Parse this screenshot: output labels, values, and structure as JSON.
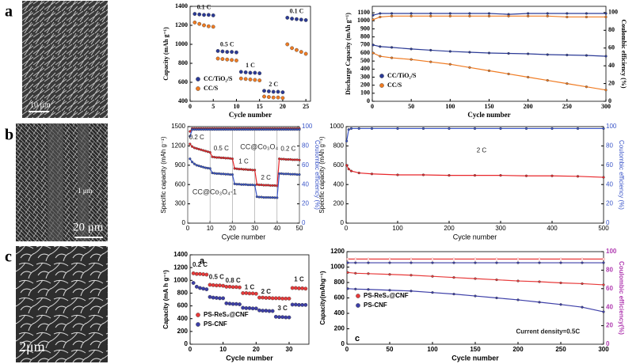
{
  "panels": [
    {
      "label": "a",
      "scale_bars": [
        "10 μm"
      ]
    },
    {
      "label": "b",
      "scale_bars": [
        "1 μm",
        "20 μm"
      ]
    },
    {
      "label": "c",
      "scale_bars": [
        "2μm"
      ]
    }
  ],
  "chart_data": [
    {
      "type": "scatter",
      "xlabel": "Cycle number",
      "ylabel": "Capacity (mAh g⁻¹)",
      "x": [
        1,
        2,
        3,
        4,
        5,
        6,
        7,
        8,
        9,
        10,
        11,
        12,
        13,
        14,
        15,
        16,
        17,
        18,
        19,
        20,
        21,
        22,
        23,
        24,
        25
      ],
      "xlim": [
        0,
        26
      ],
      "xticks": [
        0,
        5,
        10,
        15,
        20,
        25
      ],
      "ylim": [
        400,
        1400
      ],
      "yticks": [
        400,
        600,
        800,
        1000,
        1200,
        1400
      ],
      "series": [
        {
          "name": "CC/TiO₂/S",
          "color": "#2b3a96",
          "values": [
            1320,
            1315,
            1310,
            1310,
            1305,
            930,
            925,
            920,
            920,
            915,
            710,
            705,
            700,
            700,
            695,
            510,
            505,
            500,
            500,
            495,
            1280,
            1270,
            1265,
            1260,
            1255
          ]
        },
        {
          "name": "CC/S",
          "color": "#f07b22",
          "values": [
            1230,
            1215,
            1200,
            1190,
            1185,
            850,
            845,
            840,
            835,
            830,
            640,
            635,
            630,
            625,
            620,
            450,
            445,
            440,
            440,
            435,
            1000,
            960,
            940,
            920,
            900
          ]
        }
      ],
      "annotations": [
        "0.1 C",
        "0.5 C",
        "1 C",
        "2 C",
        "0.1 C"
      ]
    },
    {
      "type": "line",
      "xlabel": "Cycle number",
      "ylabel": "Discharge Capacity (mAh g⁻¹)",
      "y2label": "Coulombic efficiency (%)",
      "y2_color": "#000000",
      "x": [
        1,
        10,
        25,
        50,
        75,
        100,
        125,
        150,
        175,
        200,
        225,
        250,
        275,
        300
      ],
      "xlim": [
        0,
        300
      ],
      "xticks": [
        0,
        50,
        100,
        150,
        200,
        250,
        300
      ],
      "ylim": [
        0,
        1180
      ],
      "yticks": [
        0,
        100,
        200,
        300,
        400,
        500,
        600,
        700,
        800,
        900,
        1000,
        1100
      ],
      "y2lim": [
        0,
        107
      ],
      "y2ticks": [
        0,
        20,
        40,
        60,
        80,
        100
      ],
      "series": [
        {
          "name": "CC/TiO₂/S",
          "color": "#2b3a96",
          "values": [
            700,
            680,
            670,
            650,
            635,
            620,
            610,
            600,
            595,
            590,
            580,
            575,
            570,
            560
          ]
        },
        {
          "name": "CC/S",
          "color": "#f07b22",
          "values": [
            600,
            560,
            540,
            520,
            490,
            460,
            420,
            380,
            340,
            300,
            260,
            220,
            180,
            140
          ]
        },
        {
          "color": "#2b3a96",
          "axis": "y2",
          "values": [
            97,
            99,
            99,
            99,
            99,
            99,
            99,
            99,
            98,
            99,
            99,
            99,
            99,
            99
          ]
        },
        {
          "color": "#f07b22",
          "axis": "y2",
          "values": [
            92,
            95,
            96,
            96,
            96,
            96,
            96,
            96,
            96,
            96,
            96,
            95,
            95,
            95
          ]
        }
      ]
    },
    {
      "type": "line",
      "xlabel": "Cycle number",
      "ylabel": "Specific capacity (mAh g⁻¹)",
      "y2label": "Coulombic efficiency (%)",
      "y2_color": "#3a55c8",
      "grid": "x",
      "x": [
        1,
        2,
        3,
        4,
        5,
        6,
        7,
        8,
        9,
        10,
        11,
        12,
        13,
        14,
        15,
        16,
        17,
        18,
        19,
        20,
        21,
        22,
        23,
        24,
        25,
        26,
        27,
        28,
        29,
        30,
        31,
        32,
        33,
        34,
        35,
        36,
        37,
        38,
        39,
        40,
        41,
        42,
        43,
        44,
        45,
        46,
        47,
        48,
        49,
        50
      ],
      "xlim": [
        0,
        50
      ],
      "xticks": [
        0,
        10,
        20,
        30,
        40,
        50
      ],
      "ylim": [
        0,
        1500
      ],
      "yticks": [
        0,
        300,
        600,
        900,
        1200,
        1500
      ],
      "y2lim": [
        0,
        100
      ],
      "y2ticks": [
        0,
        20,
        40,
        60,
        80,
        100
      ],
      "series": [
        {
          "name": "CC@Co₃O₄",
          "color": "#e8262a",
          "values": [
            1230,
            1190,
            1170,
            1160,
            1150,
            1140,
            1130,
            1120,
            1110,
            1100,
            1030,
            1025,
            1020,
            1020,
            1015,
            1015,
            1010,
            1010,
            1005,
            1000,
            850,
            845,
            840,
            840,
            835,
            835,
            830,
            830,
            825,
            825,
            600,
            595,
            595,
            590,
            590,
            590,
            585,
            585,
            585,
            580,
            1000,
            995,
            995,
            990,
            990,
            990,
            985,
            985,
            985,
            980
          ]
        },
        {
          "name": "CC@Co₃O₄-1",
          "color": "#3a55c8",
          "values": [
            1000,
            950,
            920,
            900,
            890,
            880,
            870,
            860,
            855,
            850,
            780,
            775,
            770,
            770,
            765,
            765,
            760,
            760,
            755,
            755,
            610,
            605,
            605,
            600,
            600,
            600,
            595,
            595,
            595,
            590,
            410,
            405,
            405,
            400,
            400,
            400,
            398,
            398,
            396,
            395,
            770,
            770,
            765,
            765,
            765,
            760,
            760,
            760,
            755,
            755
          ]
        },
        {
          "color": "#e8262a",
          "axis": "y2",
          "values": [
            95,
            98,
            98,
            98,
            98,
            98,
            98,
            98,
            98,
            98,
            98,
            98,
            98,
            98,
            98,
            98,
            98,
            98,
            98,
            98,
            98,
            98,
            98,
            98,
            98,
            98,
            98,
            98,
            98,
            98,
            98,
            98,
            98,
            98,
            98,
            98,
            98,
            98,
            98,
            98,
            98,
            98,
            98,
            98,
            98,
            98,
            98,
            98,
            98,
            98
          ]
        },
        {
          "color": "#3a55c8",
          "axis": "y2",
          "values": [
            90,
            97,
            97,
            97,
            97,
            97,
            97,
            97,
            97,
            97,
            97,
            97,
            97,
            97,
            97,
            97,
            97,
            97,
            97,
            97,
            97,
            97,
            97,
            97,
            97,
            97,
            97,
            97,
            97,
            97,
            97,
            97,
            97,
            97,
            97,
            97,
            97,
            97,
            97,
            97,
            97,
            97,
            97,
            97,
            97,
            97,
            97,
            97,
            97,
            97
          ]
        }
      ],
      "annotations": [
        "0.2 C",
        "0.5 C",
        "1 C",
        "2 C",
        "0.2 C"
      ]
    },
    {
      "type": "line",
      "xlabel": "Cycle number",
      "ylabel": "Specific capacity (mAh g⁻¹)",
      "y2label": "Coulombic efficiency (%)",
      "y2_color": "#3a55c8",
      "x": [
        1,
        5,
        10,
        25,
        50,
        100,
        150,
        200,
        250,
        300,
        350,
        400,
        450,
        500
      ],
      "xlim": [
        0,
        500
      ],
      "xticks": [
        0,
        100,
        200,
        300,
        400,
        500
      ],
      "ylim": [
        0,
        1000
      ],
      "yticks": [
        0,
        200,
        400,
        600,
        800,
        1000
      ],
      "y2lim": [
        0,
        100
      ],
      "y2ticks": [
        0,
        20,
        40,
        60,
        80,
        100
      ],
      "series": [
        {
          "color": "#e8262a",
          "values": [
            600,
            560,
            540,
            520,
            510,
            500,
            500,
            495,
            495,
            495,
            490,
            490,
            485,
            475
          ]
        },
        {
          "color": "#3a55c8",
          "axis": "y2",
          "values": [
            85,
            97,
            98,
            98,
            98,
            98,
            98,
            98,
            98,
            98,
            98,
            98,
            98,
            98
          ]
        }
      ],
      "annotations": [
        "2 C"
      ]
    },
    {
      "type": "scatter",
      "panel_label": "a",
      "xlabel": "Cycle number",
      "ylabel": "Capacity (mA h g⁻¹)",
      "x": [
        1,
        2,
        3,
        4,
        5,
        6,
        7,
        8,
        9,
        10,
        11,
        12,
        13,
        14,
        15,
        16,
        17,
        18,
        19,
        20,
        21,
        22,
        23,
        24,
        25,
        26,
        27,
        28,
        29,
        30,
        31,
        32,
        33,
        34,
        35
      ],
      "xlim": [
        0,
        36
      ],
      "xticks": [
        0,
        10,
        20,
        30
      ],
      "ylim": [
        0,
        1400
      ],
      "yticks": [
        0,
        200,
        400,
        600,
        800,
        1000,
        1200,
        1400
      ],
      "series": [
        {
          "name": "PS-ReS₂@CNF",
          "color": "#e83a3a",
          "values": [
            1110,
            1100,
            1100,
            1095,
            1090,
            930,
            925,
            920,
            920,
            915,
            900,
            900,
            895,
            895,
            890,
            800,
            800,
            795,
            795,
            790,
            730,
            730,
            725,
            725,
            720,
            720,
            720,
            715,
            715,
            715,
            880,
            880,
            875,
            875,
            870
          ]
        },
        {
          "name": "PS-CNF",
          "color": "#3d3fa8",
          "values": [
            960,
            900,
            880,
            870,
            860,
            740,
            730,
            725,
            720,
            720,
            640,
            635,
            630,
            630,
            625,
            570,
            565,
            565,
            560,
            560,
            530,
            525,
            525,
            520,
            520,
            430,
            425,
            425,
            420,
            420,
            620,
            620,
            615,
            615,
            615
          ]
        }
      ],
      "annotations": [
        "0.2 C",
        "0.5 C",
        "0.8 C",
        "1 C",
        "2 C",
        "3 C",
        "1 C"
      ]
    },
    {
      "type": "line",
      "panel_label": "c",
      "xlabel": "Cycle number",
      "ylabel": "Capacity(mAhg⁻¹)",
      "y2label": "Coulombic efficiency(%)",
      "y2_color": "#b03ab0",
      "x": [
        1,
        10,
        25,
        50,
        75,
        100,
        125,
        150,
        175,
        200,
        225,
        250,
        275,
        300
      ],
      "xlim": [
        0,
        300
      ],
      "xticks": [
        0,
        50,
        100,
        150,
        200,
        250,
        300
      ],
      "ylim": [
        0,
        1200
      ],
      "yticks": [
        0,
        200,
        400,
        600,
        800,
        1000,
        1200
      ],
      "y2lim": [
        0,
        100
      ],
      "y2ticks": [
        0,
        20,
        40,
        60,
        80,
        100
      ],
      "series": [
        {
          "name": "PS-ReS₂@CNF",
          "color": "#e83a3a",
          "values": [
            930,
            920,
            915,
            905,
            895,
            880,
            865,
            850,
            835,
            820,
            810,
            795,
            785,
            770
          ]
        },
        {
          "name": "PS-CNF",
          "color": "#3d3fa8",
          "values": [
            720,
            715,
            710,
            700,
            690,
            670,
            650,
            625,
            600,
            575,
            545,
            515,
            480,
            420
          ]
        },
        {
          "color": "#e83a3a",
          "axis": "y2",
          "filled": false,
          "values": [
            92,
            92,
            92,
            92,
            92,
            92,
            92,
            92,
            92,
            92,
            92,
            92,
            92,
            92
          ]
        },
        {
          "color": "#3d3fa8",
          "axis": "y2",
          "values": [
            88,
            88,
            88,
            88,
            88,
            88,
            88,
            88,
            88,
            88,
            88,
            88,
            88,
            88
          ]
        }
      ],
      "annotations": [
        "Current density=0.5C"
      ]
    }
  ]
}
